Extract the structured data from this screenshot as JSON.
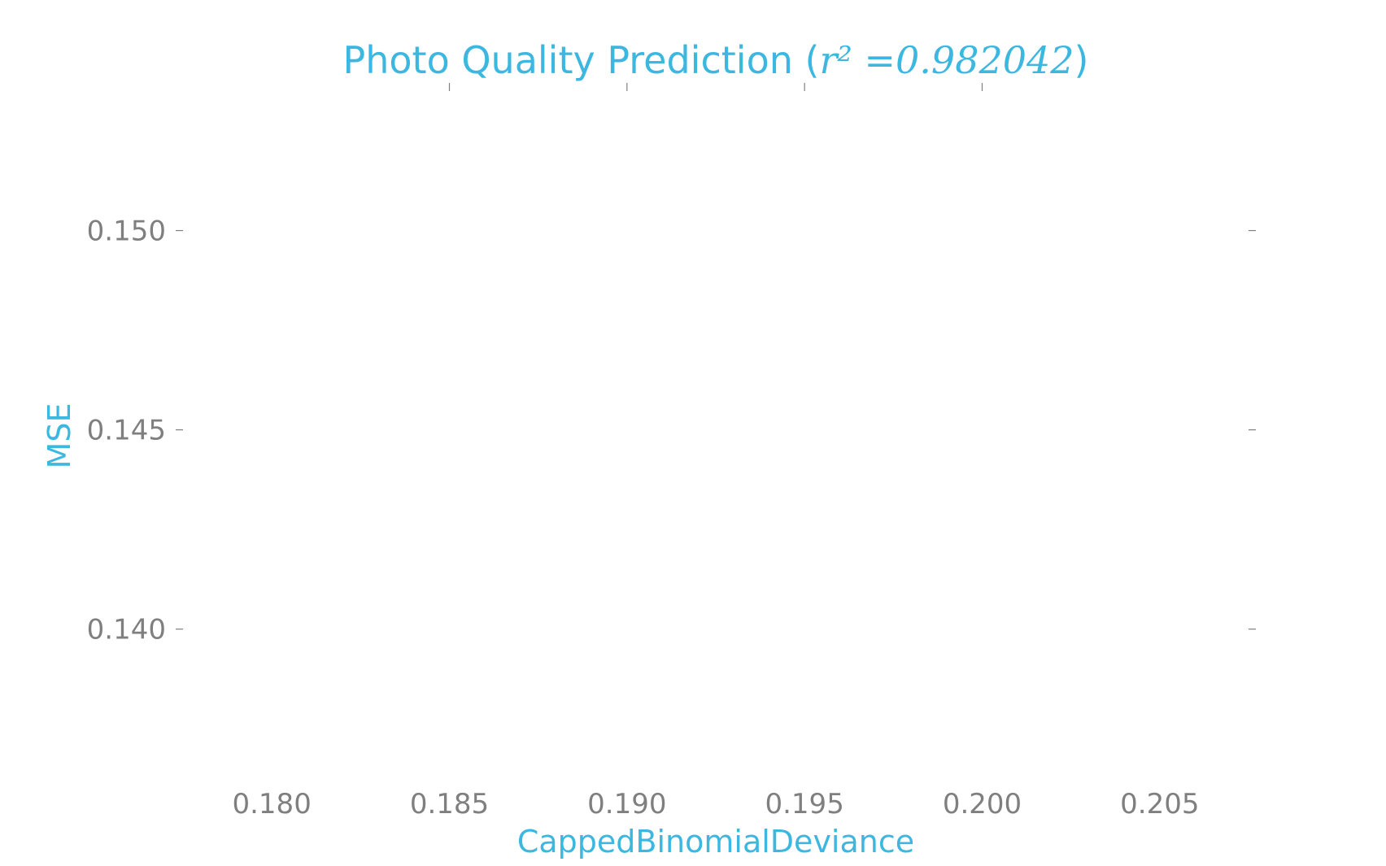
{
  "chart_data": {
    "type": "scatter",
    "title_prefix": "Photo Quality Prediction (",
    "title_r2": "r² =0.982042",
    "title_suffix": ")",
    "xlabel": "CappedBinomialDeviance",
    "ylabel": "MSE",
    "xlim": [
      0.1775,
      0.2075
    ],
    "ylim": [
      0.1363,
      0.1535
    ],
    "x_ticks": [
      0.18,
      0.185,
      0.19,
      0.195,
      0.2,
      0.205
    ],
    "x_tick_labels": [
      "0.180",
      "0.185",
      "0.190",
      "0.195",
      "0.200",
      "0.205"
    ],
    "y_ticks": [
      0.14,
      0.145,
      0.15
    ],
    "y_tick_labels": [
      "0.140",
      "0.145",
      "0.150"
    ],
    "grid": false,
    "series": [],
    "colors": {
      "accent": "#3cb7e0",
      "ticks": "#7f7f7f"
    }
  }
}
